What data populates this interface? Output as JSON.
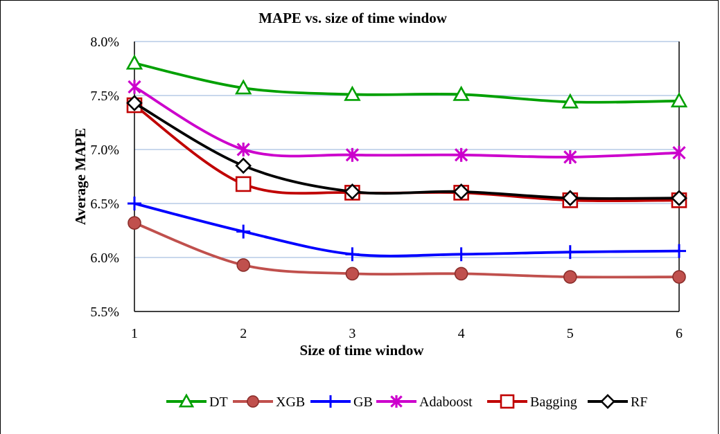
{
  "chart_data": {
    "type": "line",
    "title": "MAPE vs. size of time window",
    "xlabel": "Size of time window",
    "ylabel": "Average MAPE",
    "x": [
      1,
      2,
      3,
      4,
      5,
      6
    ],
    "x_tick_labels": [
      "1",
      "2",
      "3",
      "4",
      "5",
      "6"
    ],
    "ylim": [
      0.055,
      0.08
    ],
    "y_ticks": [
      0.055,
      0.06,
      0.065,
      0.07,
      0.075,
      0.08
    ],
    "y_tick_labels": [
      "5.5%",
      "6.0%",
      "6.5%",
      "7.0%",
      "7.5%",
      "8.0%"
    ],
    "grid": "horizontal",
    "legend_position": "bottom",
    "series": [
      {
        "name": "DT",
        "color": "#00a000",
        "marker": "triangle-open",
        "values": [
          0.078,
          0.0757,
          0.0751,
          0.0751,
          0.0744,
          0.0745
        ]
      },
      {
        "name": "XGB",
        "color": "#c0504d",
        "marker": "circle-filled",
        "values": [
          0.0632,
          0.0593,
          0.0585,
          0.0585,
          0.0582,
          0.0582
        ]
      },
      {
        "name": "GB",
        "color": "#0000ff",
        "marker": "plus",
        "values": [
          0.065,
          0.0624,
          0.0603,
          0.0603,
          0.0605,
          0.0606
        ]
      },
      {
        "name": "Adaboost",
        "color": "#cc00cc",
        "marker": "star-x",
        "values": [
          0.0758,
          0.07,
          0.0695,
          0.0695,
          0.0693,
          0.0697
        ]
      },
      {
        "name": "Bagging",
        "color": "#c00000",
        "marker": "square-open",
        "values": [
          0.0741,
          0.0668,
          0.066,
          0.066,
          0.0653,
          0.0653
        ]
      },
      {
        "name": "RF",
        "color": "#000000",
        "marker": "diamond-open",
        "values": [
          0.0743,
          0.0685,
          0.0661,
          0.0661,
          0.0655,
          0.0655
        ]
      }
    ]
  }
}
